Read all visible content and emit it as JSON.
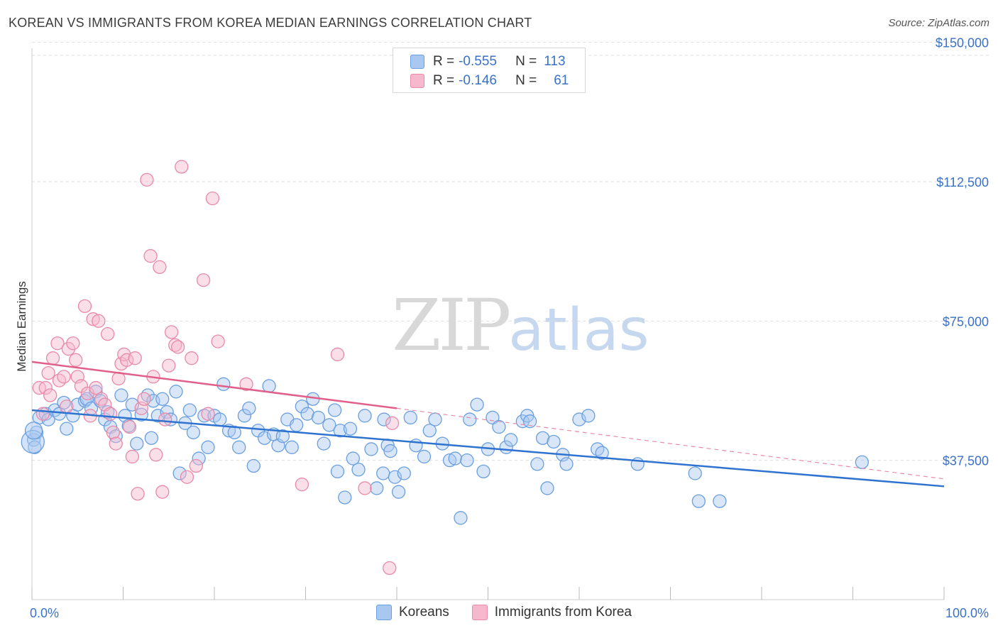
{
  "title": "KOREAN VS IMMIGRANTS FROM KOREA MEDIAN EARNINGS CORRELATION CHART",
  "source": "Source: ZipAtlas.com",
  "watermark": {
    "zip": "ZIP",
    "atlas": "atlas"
  },
  "legend": {
    "rows": [
      {
        "r_label": "R =",
        "r_value": "-0.555",
        "n_label": "N =",
        "n_value": "113",
        "color": "#a9c8f0"
      },
      {
        "r_label": "R =",
        "r_value": "-0.146",
        "n_label": "N =",
        "n_value": "61",
        "color": "#f6b8cc"
      }
    ]
  },
  "bottom_legend": [
    {
      "label": "Koreans",
      "color": "#a9c8f0"
    },
    {
      "label": "Immigrants from Korea",
      "color": "#f6b8cc"
    }
  ],
  "chart_data": {
    "type": "scatter",
    "ylabel": "Median Earnings",
    "x_tick_labels": {
      "left": "0.0%",
      "right": "100.0%"
    },
    "y_ticks": [
      {
        "value": 37500,
        "label": "$37,500"
      },
      {
        "value": 75000,
        "label": "$75,000"
      },
      {
        "value": 112500,
        "label": "$112,500"
      },
      {
        "value": 150000,
        "label": "$150,000"
      }
    ],
    "xlim": [
      0,
      100
    ],
    "ylim": [
      0,
      153750
    ],
    "grid": "horizontal dashed",
    "series": [
      {
        "name": "Koreans",
        "color": "#6a9fe0",
        "fill": "#a9c8f0",
        "trend": {
          "x": [
            0,
            100
          ],
          "y": [
            51000,
            30500
          ],
          "dashed_from": null
        },
        "points": [
          [
            0.2,
            43000
          ],
          [
            0.3,
            41000
          ],
          [
            0.5,
            45000
          ],
          [
            0.8,
            49000
          ],
          [
            1.5,
            50000
          ],
          [
            1.8,
            48500
          ],
          [
            2.5,
            51000
          ],
          [
            3.0,
            50000
          ],
          [
            3.5,
            53000
          ],
          [
            3.8,
            46000
          ],
          [
            4.5,
            49500
          ],
          [
            5.0,
            52500
          ],
          [
            5.8,
            53500
          ],
          [
            6.0,
            54000
          ],
          [
            6.5,
            51500
          ],
          [
            7.0,
            56000
          ],
          [
            7.5,
            53500
          ],
          [
            8.0,
            48500
          ],
          [
            8.3,
            50500
          ],
          [
            8.6,
            46500
          ],
          [
            9.2,
            44000
          ],
          [
            9.8,
            55000
          ],
          [
            10.2,
            49500
          ],
          [
            10.6,
            46800
          ],
          [
            11.0,
            52500
          ],
          [
            11.5,
            42000
          ],
          [
            12.0,
            49800
          ],
          [
            12.7,
            55000
          ],
          [
            13.1,
            43500
          ],
          [
            13.3,
            53500
          ],
          [
            13.8,
            49500
          ],
          [
            14.3,
            54000
          ],
          [
            14.8,
            50500
          ],
          [
            15.2,
            48500
          ],
          [
            15.8,
            56000
          ],
          [
            16.2,
            34000
          ],
          [
            16.8,
            47500
          ],
          [
            17.3,
            51000
          ],
          [
            17.7,
            45000
          ],
          [
            18.3,
            38000
          ],
          [
            18.9,
            49500
          ],
          [
            19.3,
            41000
          ],
          [
            20.0,
            49500
          ],
          [
            20.6,
            48500
          ],
          [
            21.0,
            58000
          ],
          [
            21.6,
            45500
          ],
          [
            22.2,
            45000
          ],
          [
            22.7,
            41000
          ],
          [
            23.3,
            49500
          ],
          [
            23.8,
            51500
          ],
          [
            24.3,
            36000
          ],
          [
            24.8,
            45500
          ],
          [
            25.5,
            43500
          ],
          [
            26.0,
            57500
          ],
          [
            26.5,
            44500
          ],
          [
            27.0,
            41500
          ],
          [
            27.5,
            44000
          ],
          [
            28.0,
            48500
          ],
          [
            28.5,
            41000
          ],
          [
            29.0,
            47000
          ],
          [
            29.6,
            52000
          ],
          [
            30.2,
            50000
          ],
          [
            30.8,
            54000
          ],
          [
            31.4,
            49000
          ],
          [
            32.0,
            42000
          ],
          [
            32.6,
            47000
          ],
          [
            33.2,
            51000
          ],
          [
            33.8,
            45500
          ],
          [
            33.5,
            34500
          ],
          [
            34.3,
            27500
          ],
          [
            34.9,
            46000
          ],
          [
            35.2,
            38000
          ],
          [
            35.8,
            35000
          ],
          [
            36.5,
            49500
          ],
          [
            37.2,
            40500
          ],
          [
            37.8,
            30000
          ],
          [
            38.6,
            48500
          ],
          [
            38.5,
            34000
          ],
          [
            39.0,
            41500
          ],
          [
            39.3,
            40000
          ],
          [
            39.8,
            33000
          ],
          [
            40.2,
            29000
          ],
          [
            40.8,
            34000
          ],
          [
            41.5,
            49000
          ],
          [
            42.1,
            41500
          ],
          [
            43.0,
            38500
          ],
          [
            43.6,
            45500
          ],
          [
            44.2,
            48500
          ],
          [
            45.0,
            42000
          ],
          [
            45.8,
            37500
          ],
          [
            46.4,
            38000
          ],
          [
            47.0,
            22000
          ],
          [
            47.7,
            37500
          ],
          [
            48.0,
            48500
          ],
          [
            48.8,
            52500
          ],
          [
            49.5,
            34500
          ],
          [
            50.0,
            40500
          ],
          [
            50.5,
            49000
          ],
          [
            51.2,
            46500
          ],
          [
            52.0,
            41000
          ],
          [
            52.5,
            43000
          ],
          [
            53.8,
            48000
          ],
          [
            54.3,
            49500
          ],
          [
            54.6,
            48000
          ],
          [
            55.4,
            36500
          ],
          [
            56.0,
            43500
          ],
          [
            56.5,
            30000
          ],
          [
            57.2,
            42500
          ],
          [
            58.2,
            39000
          ],
          [
            58.6,
            36500
          ],
          [
            60.0,
            48500
          ],
          [
            61.0,
            49500
          ],
          [
            62.0,
            40500
          ],
          [
            62.5,
            39500
          ],
          [
            66.4,
            36500
          ],
          [
            72.7,
            34000
          ],
          [
            73.1,
            26500
          ],
          [
            75.4,
            26500
          ],
          [
            91.0,
            37000
          ]
        ]
      },
      {
        "name": "Immigrants from Korea",
        "color": "#e88aa8",
        "fill": "#f6b8cc",
        "trend": {
          "x": [
            0,
            40,
            100
          ],
          "y": [
            64000,
            51500,
            32500
          ],
          "dashed_from": 40
        },
        "points": [
          [
            0.8,
            57000
          ],
          [
            1.2,
            50000
          ],
          [
            1.5,
            57000
          ],
          [
            1.8,
            61000
          ],
          [
            2.0,
            55000
          ],
          [
            2.3,
            65000
          ],
          [
            2.8,
            69000
          ],
          [
            3.0,
            59000
          ],
          [
            3.5,
            60000
          ],
          [
            3.8,
            52000
          ],
          [
            4.0,
            67500
          ],
          [
            4.5,
            69000
          ],
          [
            4.8,
            64500
          ],
          [
            5.0,
            60000
          ],
          [
            5.4,
            57500
          ],
          [
            5.8,
            79000
          ],
          [
            6.1,
            55500
          ],
          [
            6.4,
            49500
          ],
          [
            6.7,
            75500
          ],
          [
            7.0,
            57000
          ],
          [
            7.3,
            75000
          ],
          [
            7.6,
            54000
          ],
          [
            8.0,
            52500
          ],
          [
            8.3,
            71500
          ],
          [
            8.6,
            50000
          ],
          [
            8.9,
            45000
          ],
          [
            9.2,
            42000
          ],
          [
            9.5,
            59500
          ],
          [
            9.8,
            63500
          ],
          [
            10.1,
            66000
          ],
          [
            10.4,
            64500
          ],
          [
            10.7,
            46500
          ],
          [
            11.0,
            38500
          ],
          [
            11.3,
            65000
          ],
          [
            11.6,
            28500
          ],
          [
            12.0,
            51500
          ],
          [
            12.3,
            54000
          ],
          [
            12.6,
            113000
          ],
          [
            13.0,
            92500
          ],
          [
            13.3,
            60000
          ],
          [
            13.6,
            39000
          ],
          [
            14.0,
            89500
          ],
          [
            14.3,
            29000
          ],
          [
            14.6,
            48500
          ],
          [
            15.0,
            63000
          ],
          [
            15.3,
            72000
          ],
          [
            15.7,
            68500
          ],
          [
            16.0,
            68000
          ],
          [
            16.4,
            116500
          ],
          [
            17.0,
            33000
          ],
          [
            17.5,
            65000
          ],
          [
            18.0,
            36000
          ],
          [
            18.8,
            86000
          ],
          [
            19.3,
            50000
          ],
          [
            19.8,
            108000
          ],
          [
            20.4,
            69500
          ],
          [
            23.5,
            58000
          ],
          [
            29.6,
            31000
          ],
          [
            33.5,
            66000
          ],
          [
            36.5,
            30000
          ],
          [
            39.5,
            47500
          ],
          [
            39.2,
            8500
          ]
        ]
      }
    ]
  }
}
